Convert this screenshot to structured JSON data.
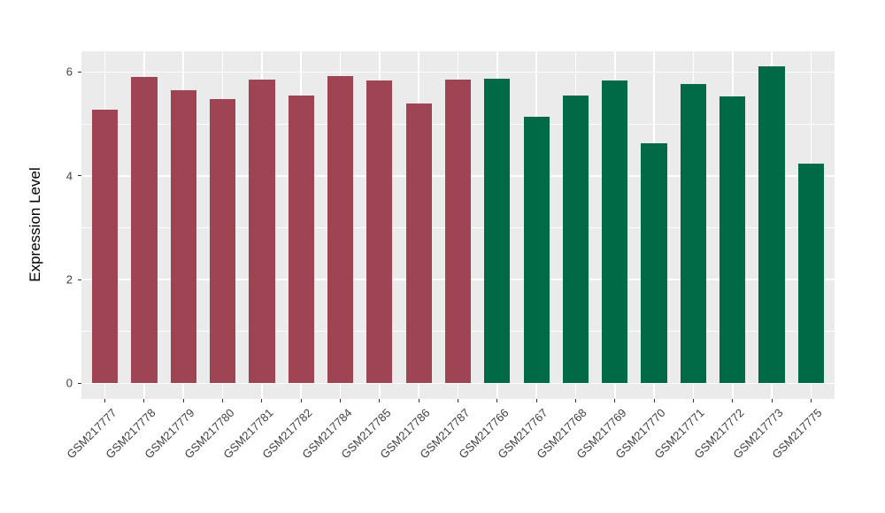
{
  "figure": {
    "background": "#ffffff"
  },
  "chart_data": {
    "type": "bar",
    "title": "",
    "xlabel": "",
    "ylabel": "Expression Level",
    "ylim": [
      -0.3,
      6.4
    ],
    "yticks": [
      0,
      2,
      4,
      6
    ],
    "minor_yticks": [
      1,
      3,
      5
    ],
    "grid": "major-and-minor, white on gray panel",
    "legend": "none",
    "panel_bg": "#ebebeb",
    "grid_color": "#ffffff",
    "tick_mark_color": "#333333",
    "tick_label_color": "#404040",
    "axis_title_color": "#000000",
    "group_colors": {
      "left_group": "#9e4452",
      "right_group": "#006946"
    },
    "bars": [
      {
        "label": "GSM217777",
        "value": 5.27,
        "color": "#9e4452"
      },
      {
        "label": "GSM217778",
        "value": 5.91,
        "color": "#9e4452"
      },
      {
        "label": "GSM217779",
        "value": 5.65,
        "color": "#9e4452"
      },
      {
        "label": "GSM217780",
        "value": 5.48,
        "color": "#9e4452"
      },
      {
        "label": "GSM217781",
        "value": 5.85,
        "color": "#9e4452"
      },
      {
        "label": "GSM217782",
        "value": 5.55,
        "color": "#9e4452"
      },
      {
        "label": "GSM217784",
        "value": 5.93,
        "color": "#9e4452"
      },
      {
        "label": "GSM217785",
        "value": 5.83,
        "color": "#9e4452"
      },
      {
        "label": "GSM217786",
        "value": 5.4,
        "color": "#9e4452"
      },
      {
        "label": "GSM217787",
        "value": 5.85,
        "color": "#9e4452"
      },
      {
        "label": "GSM217766",
        "value": 5.88,
        "color": "#006946"
      },
      {
        "label": "GSM217767",
        "value": 5.13,
        "color": "#006946"
      },
      {
        "label": "GSM217768",
        "value": 5.55,
        "color": "#006946"
      },
      {
        "label": "GSM217769",
        "value": 5.83,
        "color": "#006946"
      },
      {
        "label": "GSM217770",
        "value": 4.63,
        "color": "#006946"
      },
      {
        "label": "GSM217771",
        "value": 5.77,
        "color": "#006946"
      },
      {
        "label": "GSM217772",
        "value": 5.53,
        "color": "#006946"
      },
      {
        "label": "GSM217773",
        "value": 6.11,
        "color": "#006946"
      },
      {
        "label": "GSM217775",
        "value": 4.23,
        "color": "#006946"
      }
    ]
  }
}
